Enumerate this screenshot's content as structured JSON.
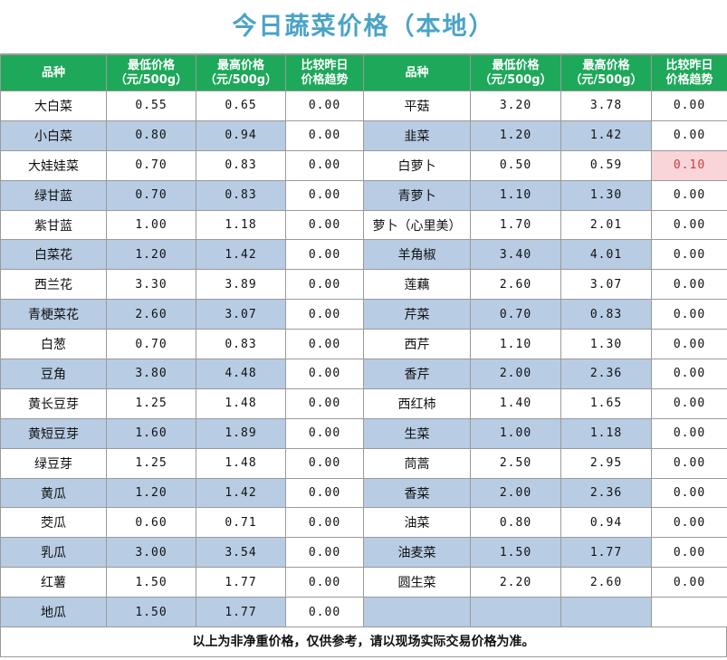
{
  "title": "今日蔬菜价格（本地）",
  "headers": {
    "name": "品种",
    "low": [
      "最低价格",
      "（元/500g）"
    ],
    "high": [
      "最高价格",
      "（元/500g）"
    ],
    "trend": [
      "比较昨日",
      "价格趋势"
    ]
  },
  "left": [
    {
      "name": "大白菜",
      "low": "0.55",
      "high": "0.65",
      "trend": "0.00"
    },
    {
      "name": "小白菜",
      "low": "0.80",
      "high": "0.94",
      "trend": "0.00"
    },
    {
      "name": "大娃娃菜",
      "low": "0.70",
      "high": "0.83",
      "trend": "0.00"
    },
    {
      "name": "绿甘蓝",
      "low": "0.70",
      "high": "0.83",
      "trend": "0.00"
    },
    {
      "name": "紫甘蓝",
      "low": "1.00",
      "high": "1.18",
      "trend": "0.00"
    },
    {
      "name": "白菜花",
      "low": "1.20",
      "high": "1.42",
      "trend": "0.00"
    },
    {
      "name": "西兰花",
      "low": "3.30",
      "high": "3.89",
      "trend": "0.00"
    },
    {
      "name": "青梗菜花",
      "low": "2.60",
      "high": "3.07",
      "trend": "0.00"
    },
    {
      "name": "白葱",
      "low": "0.70",
      "high": "0.83",
      "trend": "0.00"
    },
    {
      "name": "豆角",
      "low": "3.80",
      "high": "4.48",
      "trend": "0.00"
    },
    {
      "name": "黄长豆芽",
      "low": "1.25",
      "high": "1.48",
      "trend": "0.00"
    },
    {
      "name": "黄短豆芽",
      "low": "1.60",
      "high": "1.89",
      "trend": "0.00"
    },
    {
      "name": "绿豆芽",
      "low": "1.25",
      "high": "1.48",
      "trend": "0.00"
    },
    {
      "name": "黄瓜",
      "low": "1.20",
      "high": "1.42",
      "trend": "0.00"
    },
    {
      "name": "茭瓜",
      "low": "0.60",
      "high": "0.71",
      "trend": "0.00"
    },
    {
      "name": "乳瓜",
      "low": "3.00",
      "high": "3.54",
      "trend": "0.00"
    },
    {
      "name": "红薯",
      "low": "1.50",
      "high": "1.77",
      "trend": "0.00"
    },
    {
      "name": "地瓜",
      "low": "1.50",
      "high": "1.77",
      "trend": "0.00"
    }
  ],
  "right": [
    {
      "name": "平菇",
      "low": "3.20",
      "high": "3.78",
      "trend": "0.00"
    },
    {
      "name": "韭菜",
      "low": "1.20",
      "high": "1.42",
      "trend": "0.00"
    },
    {
      "name": "白萝卜",
      "low": "0.50",
      "high": "0.59",
      "trend": "0.10",
      "trend_up": true
    },
    {
      "name": "青萝卜",
      "low": "1.10",
      "high": "1.30",
      "trend": "0.00"
    },
    {
      "name": "萝卜（心里美）",
      "low": "1.70",
      "high": "2.01",
      "trend": "0.00"
    },
    {
      "name": "羊角椒",
      "low": "3.40",
      "high": "4.01",
      "trend": "0.00"
    },
    {
      "name": "莲藕",
      "low": "2.60",
      "high": "3.07",
      "trend": "0.00"
    },
    {
      "name": "芹菜",
      "low": "0.70",
      "high": "0.83",
      "trend": "0.00"
    },
    {
      "name": "西芹",
      "low": "1.10",
      "high": "1.30",
      "trend": "0.00"
    },
    {
      "name": "香芹",
      "low": "2.00",
      "high": "2.36",
      "trend": "0.00"
    },
    {
      "name": "西红柿",
      "low": "1.40",
      "high": "1.65",
      "trend": "0.00"
    },
    {
      "name": "生菜",
      "low": "1.00",
      "high": "1.18",
      "trend": "0.00"
    },
    {
      "name": "茼蒿",
      "low": "2.50",
      "high": "2.95",
      "trend": "0.00"
    },
    {
      "name": "香菜",
      "low": "2.00",
      "high": "2.36",
      "trend": "0.00"
    },
    {
      "name": "油菜",
      "low": "0.80",
      "high": "0.94",
      "trend": "0.00"
    },
    {
      "name": "油麦菜",
      "low": "1.50",
      "high": "1.77",
      "trend": "0.00"
    },
    {
      "name": "圆生菜",
      "low": "2.20",
      "high": "2.60",
      "trend": "0.00"
    }
  ],
  "footer": "以上为非净重价格，仅供参考，请以现场实际交易价格为准。",
  "colors": {
    "title": "#4aa3c8",
    "header_bg": "#1ea85a",
    "alt_row": "#b8cce4",
    "trend_up_bg": "#f9d5d9"
  }
}
